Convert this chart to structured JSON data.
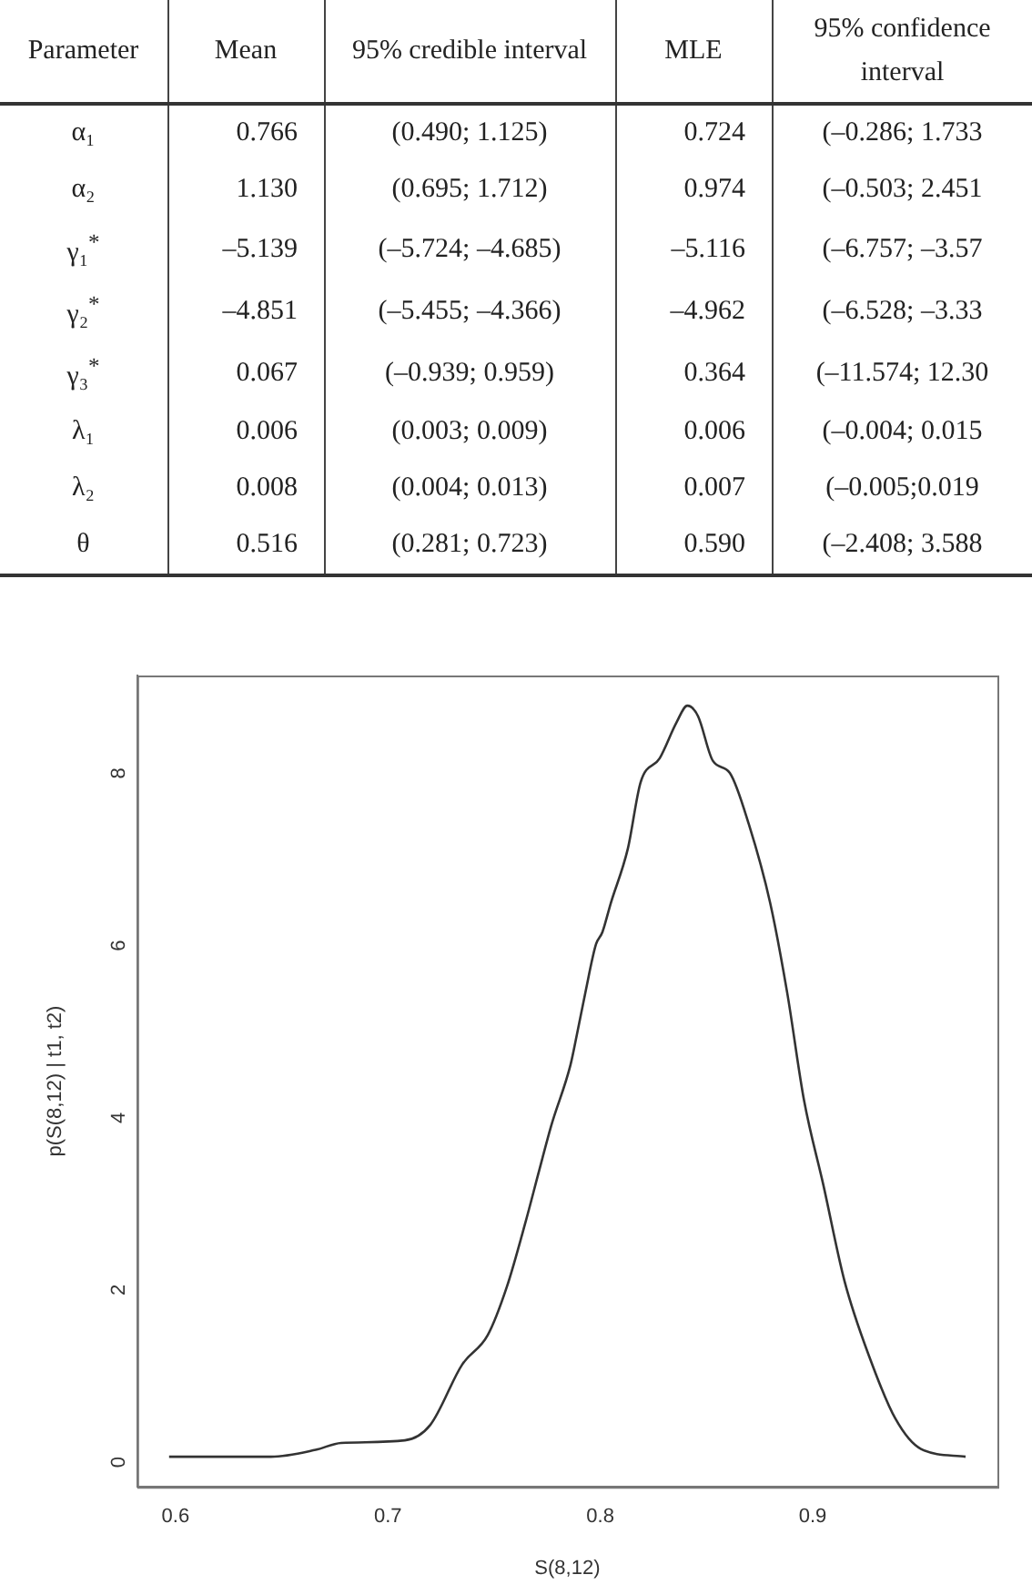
{
  "chart_data": [
    {
      "type": "other",
      "annotations": [
        "Parameter",
        "Mean",
        "95% credible interval",
        "MLE",
        "95% confidence interval",
        "α₁",
        "0.766",
        "(0.490; 1.125)",
        "0.724",
        "(–0.286; 1.733",
        "α₂",
        "1.130",
        "(0.695; 1.712)",
        "0.974",
        "(–0.503; 2.451",
        "γ₁$^{*}$",
        "–5.139",
        "(–5.724; –4.685)",
        "–5.116",
        "(–6.757; –3.57",
        "γ₂$^{*}$",
        "–4.851",
        "(–5.455; –4.366)",
        "–4.962",
        "(–6.528; –3.33",
        "γ₃$^{*}$",
        "0.067",
        "(–0.939; 0.959)",
        "0.364",
        "(–11.574; 12.30",
        "λ₁",
        "0.006",
        "(0.003; 0.009)",
        "0.006",
        "(–0.004; 0.015",
        "λ₂",
        "0.008",
        "(0.004; 0.013)",
        "0.007",
        "(–0.005;0.019",
        "θ",
        "0.516",
        "(0.281; 0.723)",
        "0.590",
        "(–2.408; 3.588"
      ]
    },
    {
      "type": "line",
      "xlabel": "S(8,12)",
      "ylabel": "p(S(8,12) | t1, t2)",
      "x": [
        0.597,
        0.645,
        0.666,
        0.678,
        0.708,
        0.72,
        0.735,
        0.747,
        0.756,
        0.765,
        0.771,
        0.777,
        0.786,
        0.789,
        0.793,
        0.798,
        0.801,
        0.805,
        0.813,
        0.819,
        0.828,
        0.836,
        0.841,
        0.846,
        0.853,
        0.861,
        0.87,
        0.88,
        0.888,
        0.896,
        0.905,
        0.915,
        0.927,
        0.939,
        0.951,
        0.972
      ],
      "series": [
        {
          "color": "#333333",
          "values": [
            0,
            0,
            0.08,
            0.16,
            0.19,
            0.37,
            1.07,
            1.41,
            1.97,
            2.74,
            3.3,
            3.85,
            4.55,
            4.9,
            5.39,
            5.95,
            6.09,
            6.43,
            7.06,
            7.83,
            8.11,
            8.53,
            8.72,
            8.6,
            8.08,
            7.94,
            7.34,
            6.43,
            5.39,
            4.13,
            3.16,
            2.04,
            1.14,
            0.44,
            0.09,
            0
          ]
        }
      ],
      "xlim": [
        0.582,
        0.987
      ],
      "ylim": [
        -0.35,
        9.07
      ],
      "xticks": [
        0.6,
        0.7,
        0.8,
        0.9
      ],
      "yticks": [
        0,
        2,
        4,
        6,
        8
      ]
    }
  ]
}
